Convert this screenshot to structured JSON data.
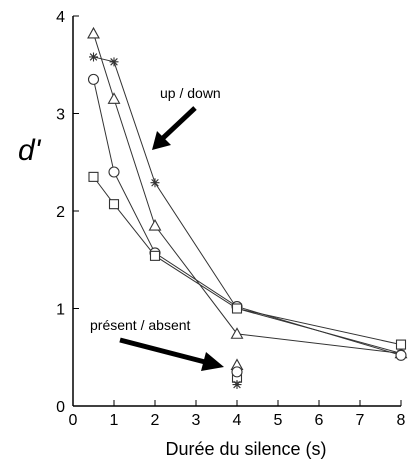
{
  "chart_data": {
    "type": "line",
    "xlabel": "Durée du silence (s)",
    "ylabel": "d'",
    "xlim": [
      0,
      8
    ],
    "ylim": [
      0,
      4
    ],
    "xticks": [
      "0",
      "1",
      "2",
      "3",
      "4",
      "5",
      "6",
      "7",
      "8"
    ],
    "yticks": [
      "0",
      "1",
      "2",
      "3",
      "4"
    ],
    "grid": false,
    "series": [
      {
        "marker": "triangle",
        "x": [
          0.5,
          1,
          2,
          4,
          8
        ],
        "y": [
          3.82,
          3.15,
          1.85,
          0.74,
          0.54
        ]
      },
      {
        "marker": "star",
        "x": [
          0.5,
          1,
          2,
          4,
          8
        ],
        "y": [
          3.58,
          3.53,
          2.29,
          1.0,
          0.54
        ]
      },
      {
        "marker": "circle",
        "x": [
          0.5,
          1,
          2,
          4,
          8
        ],
        "y": [
          3.35,
          2.4,
          1.57,
          1.02,
          0.52
        ]
      },
      {
        "marker": "square",
        "x": [
          0.5,
          1,
          2,
          4,
          8
        ],
        "y": [
          2.35,
          2.07,
          1.54,
          1.0,
          0.63
        ]
      }
    ],
    "points": [
      {
        "marker": "triangle",
        "x": 4,
        "y": 0.42
      },
      {
        "marker": "square",
        "x": 4,
        "y": 0.29
      },
      {
        "marker": "circle",
        "x": 4,
        "y": 0.35
      },
      {
        "marker": "star",
        "x": 4,
        "y": 0.22
      }
    ],
    "annotations": [
      {
        "text": "up / down",
        "target": {
          "x": 2,
          "y": 2.65
        }
      },
      {
        "text": "présent / absent",
        "target": {
          "x": 3.75,
          "y": 0.35
        }
      }
    ]
  }
}
